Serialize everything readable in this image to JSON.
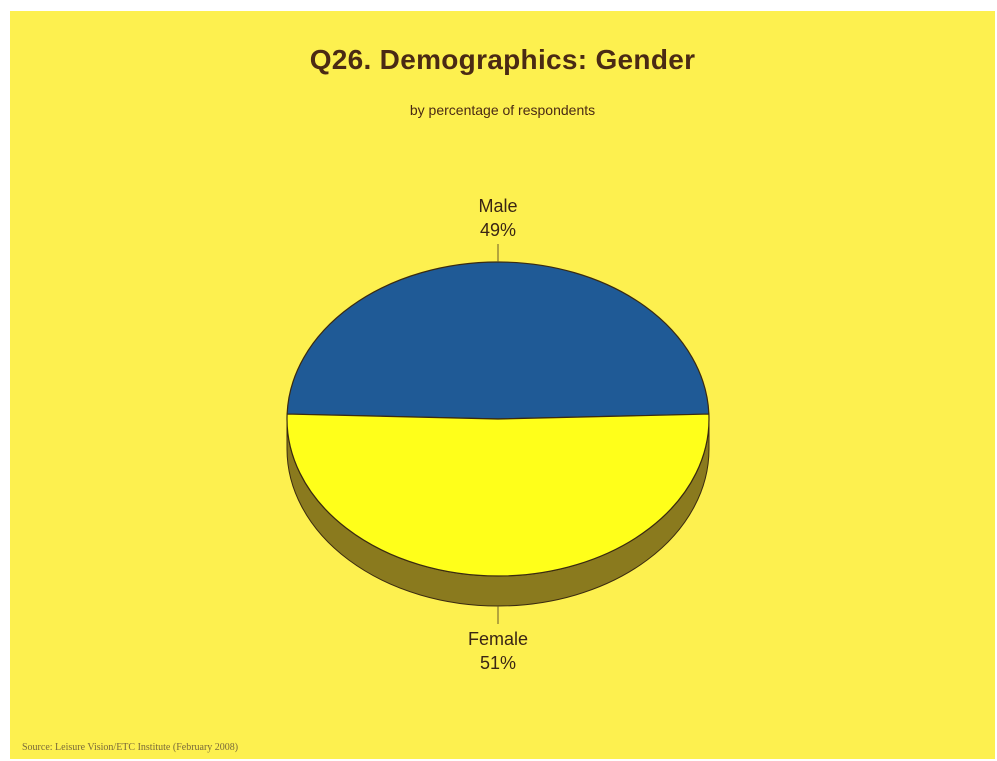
{
  "chart_data": {
    "type": "pie",
    "title": "Q26. Demographics: Gender",
    "subtitle": "by percentage of respondents",
    "slices": [
      {
        "label": "Male",
        "value": 49,
        "value_label": "49%",
        "color": "#1f5a96"
      },
      {
        "label": "Female",
        "value": 51,
        "value_label": "51%",
        "color": "#ffff1a"
      }
    ],
    "style": "3d-tilted",
    "side_color": "#8a7a1e",
    "background": "#fdf04f"
  },
  "source": "Source: Leisure Vision/ETC Institute (February 2008)"
}
